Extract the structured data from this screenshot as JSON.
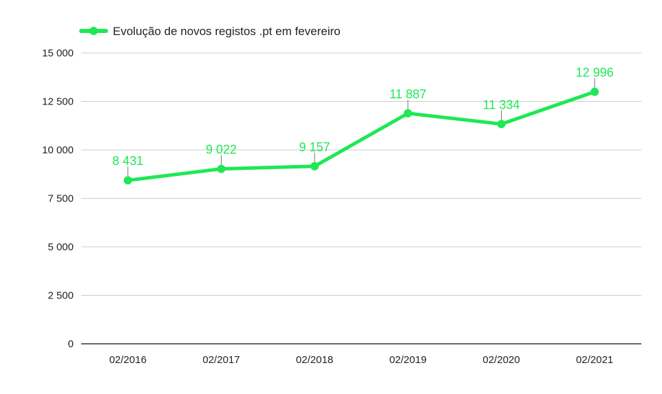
{
  "chart_data": {
    "type": "line",
    "categories": [
      "02/2016",
      "02/2017",
      "02/2018",
      "02/2019",
      "02/2020",
      "02/2021"
    ],
    "series": [
      {
        "name": "Evolução de novos registos .pt em fevereiro",
        "values": [
          8431,
          9022,
          9157,
          11887,
          11334,
          12996
        ],
        "data_labels": [
          "8 431",
          "9 022",
          "9 157",
          "11 887",
          "11 334",
          "12 996"
        ],
        "color": "#1ee855"
      }
    ],
    "y_ticks": [
      {
        "value": 0,
        "label": "0"
      },
      {
        "value": 2500,
        "label": "2 500"
      },
      {
        "value": 5000,
        "label": "5 000"
      },
      {
        "value": 7500,
        "label": "7 500"
      },
      {
        "value": 10000,
        "label": "10 000"
      },
      {
        "value": 12500,
        "label": "12 500"
      },
      {
        "value": 15000,
        "label": "15 000"
      }
    ],
    "ylim": [
      0,
      15000
    ],
    "grid": true,
    "legend_position": "top-left",
    "title": "",
    "xlabel": "",
    "ylabel": ""
  }
}
